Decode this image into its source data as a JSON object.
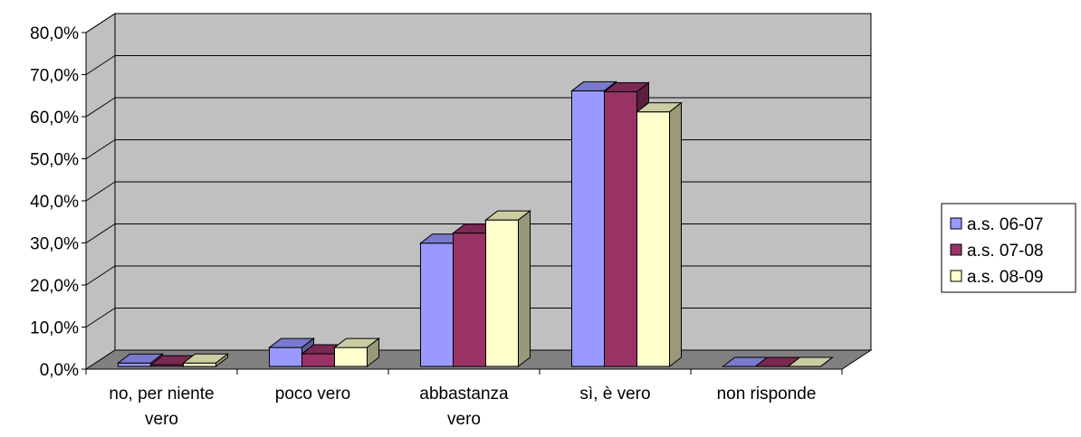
{
  "chart_data": {
    "type": "bar",
    "style": "3d-clustered-column",
    "categories": [
      [
        "no, per niente",
        "vero"
      ],
      [
        "poco vero"
      ],
      [
        "abbastanza",
        "vero"
      ],
      [
        "sì, è vero"
      ],
      [
        "non risponde"
      ]
    ],
    "series": [
      {
        "name": "a.s. 06-07",
        "color": "#9999ff",
        "side": "#5c5c99",
        "top": "#7a7acc",
        "values": [
          0.8,
          4.5,
          29.3,
          65.5,
          0.0
        ]
      },
      {
        "name": "a.s. 07-08",
        "color": "#993366",
        "side": "#5c1f3d",
        "top": "#7a2952",
        "values": [
          0.4,
          3.0,
          31.7,
          65.3,
          0.0
        ]
      },
      {
        "name": "a.s. 08-09",
        "color": "#ffffcc",
        "side": "#99997a",
        "top": "#cccca3",
        "values": [
          0.8,
          4.5,
          34.8,
          60.5,
          0.0
        ]
      }
    ],
    "yticks": [
      "0,0%",
      "10,0%",
      "20,0%",
      "30,0%",
      "40,0%",
      "50,0%",
      "60,0%",
      "70,0%",
      "80,0%"
    ],
    "ylim": [
      0,
      80
    ],
    "grid": true,
    "legend": "right",
    "title": "",
    "xlabel": "",
    "ylabel": "",
    "colors": {
      "wall": "#c0c0c0",
      "floor": "#808080",
      "gridline": "#000000"
    }
  }
}
